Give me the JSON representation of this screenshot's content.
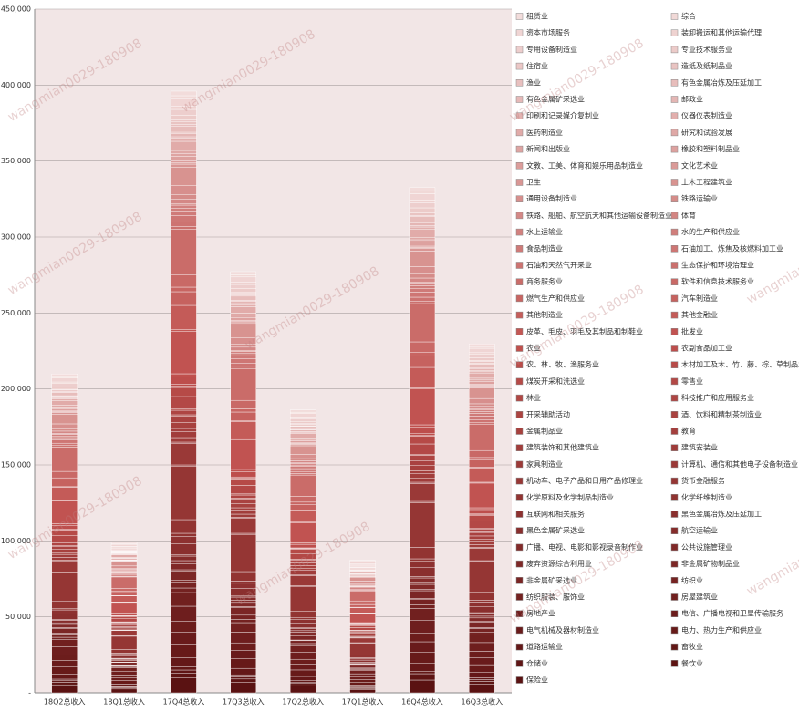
{
  "chart_data": {
    "type": "stacked-bar",
    "categories": [
      "18Q2总收入",
      "18Q1总收入",
      "17Q4总收入",
      "17Q3总收入",
      "17Q2总收入",
      "17Q1总收入",
      "16Q4总收入",
      "16Q3总收入"
    ],
    "ylim": [
      0,
      450000
    ],
    "yticks": [
      {
        "value": 0,
        "label": "-"
      },
      {
        "value": 50000,
        "label": "50,000"
      },
      {
        "value": 100000,
        "label": "100,000"
      },
      {
        "value": 150000,
        "label": "150,000"
      },
      {
        "value": 200000,
        "label": "200,000"
      },
      {
        "value": 250000,
        "label": "250,000"
      },
      {
        "value": 300000,
        "label": "300,000"
      },
      {
        "value": 350000,
        "label": "350,000"
      },
      {
        "value": 400000,
        "label": "400,000"
      },
      {
        "value": 450000,
        "label": "450,000"
      }
    ],
    "grid": true,
    "legend": "right",
    "legend_columns": 2,
    "colors": [
      "#5a1212",
      "#c0504d",
      "#f2dcdb"
    ],
    "plot_background": "#f2e6e6",
    "watermark": "wangmian0029-180908",
    "series": [
      {
        "name": "保险业",
        "values": [
          5300,
          2500,
          10000,
          7000,
          4700,
          2200,
          8400,
          5800
        ]
      },
      {
        "name": "餐饮业",
        "values": [
          1590,
          750,
          3000,
          2100,
          1410,
          660,
          2520,
          1740
        ]
      },
      {
        "name": "仓储业",
        "values": [
          1060,
          500,
          2000,
          1400,
          940,
          440,
          1680,
          1160
        ]
      },
      {
        "name": "畜牧业",
        "values": [
          1060,
          500,
          2000,
          1400,
          940,
          440,
          1680,
          1160
        ]
      },
      {
        "name": "道路运输业",
        "values": [
          3180,
          1500,
          6000,
          4200,
          2820,
          1320,
          5040,
          3480
        ]
      },
      {
        "name": "电力、热力生产和供应业",
        "values": [
          4770,
          2250,
          9000,
          6300,
          4230,
          1980,
          7560,
          5220
        ]
      },
      {
        "name": "电气机械及器材制造业",
        "values": [
          4240,
          2000,
          8000,
          5600,
          3760,
          1760,
          6720,
          4640
        ]
      },
      {
        "name": "电信、广播电视和卫星传输服务",
        "values": [
          3710,
          1750,
          7000,
          4900,
          3290,
          1540,
          5880,
          4060
        ]
      },
      {
        "name": "房地产业",
        "values": [
          5300,
          2500,
          10000,
          7000,
          4700,
          2200,
          8400,
          5800
        ]
      },
      {
        "name": "房屋建筑业",
        "values": [
          4770,
          2250,
          9000,
          6300,
          4230,
          1980,
          7560,
          5220
        ]
      },
      {
        "name": "纺织服装、服饰业",
        "values": [
          1590,
          750,
          3000,
          2100,
          1410,
          660,
          2520,
          1740
        ]
      },
      {
        "name": "纺织业",
        "values": [
          2120,
          1000,
          4000,
          2800,
          1880,
          880,
          3360,
          2320
        ]
      },
      {
        "name": "非金属矿采选业",
        "values": [
          530,
          250,
          1000,
          700,
          470,
          220,
          840,
          580
        ]
      },
      {
        "name": "非金属矿物制品业",
        "values": [
          3180,
          1500,
          6000,
          4200,
          2820,
          1320,
          5040,
          3480
        ]
      },
      {
        "name": "废弃资源综合利用业",
        "values": [
          530,
          250,
          1000,
          700,
          470,
          220,
          840,
          580
        ]
      },
      {
        "name": "公共设施管理业",
        "values": [
          2120,
          1000,
          4000,
          2800,
          1880,
          880,
          3360,
          2320
        ]
      },
      {
        "name": "广播、电视、电影和影视录音制作业",
        "values": [
          1060,
          500,
          2000,
          1400,
          940,
          440,
          1680,
          1160
        ]
      },
      {
        "name": "航空运输业",
        "values": [
          1590,
          750,
          3000,
          2100,
          1410,
          660,
          2520,
          1740
        ]
      },
      {
        "name": "黑色金属矿采选业",
        "values": [
          530,
          250,
          1000,
          700,
          470,
          220,
          840,
          580
        ]
      },
      {
        "name": "黑色金属冶炼及压延加工",
        "values": [
          3710,
          1750,
          7000,
          4900,
          3290,
          1540,
          5880,
          4060
        ]
      },
      {
        "name": "互联网和相关服务",
        "values": [
          2650,
          1250,
          5000,
          3500,
          2350,
          1100,
          4200,
          2900
        ]
      },
      {
        "name": "化学纤维制造业",
        "values": [
          1060,
          500,
          2000,
          1400,
          940,
          440,
          1680,
          1160
        ]
      },
      {
        "name": "化学原料及化学制品制造业",
        "values": [
          4770,
          2250,
          9000,
          6300,
          4230,
          1980,
          7560,
          5220
        ]
      },
      {
        "name": "货币金融服务",
        "values": [
          18550,
          8750,
          35000,
          24500,
          16450,
          7700,
          29400,
          20300
        ]
      },
      {
        "name": "机动车、电子产品和日用产品修理业",
        "values": [
          530,
          250,
          1000,
          700,
          470,
          220,
          840,
          580
        ]
      },
      {
        "name": "计算机、通信和其他电子设备制造业",
        "values": [
          7420,
          3500,
          14000,
          9800,
          6580,
          3080,
          11760,
          8120
        ]
      },
      {
        "name": "家具制造业",
        "values": [
          530,
          250,
          1000,
          700,
          470,
          220,
          840,
          580
        ]
      },
      {
        "name": "建筑安装业",
        "values": [
          1590,
          750,
          3000,
          2100,
          1410,
          660,
          2520,
          1740
        ]
      },
      {
        "name": "建筑装饰和其他建筑业",
        "values": [
          2120,
          1000,
          4000,
          2800,
          1880,
          880,
          3360,
          2320
        ]
      },
      {
        "name": "教育",
        "values": [
          1060,
          500,
          2000,
          1400,
          940,
          440,
          1680,
          1160
        ]
      },
      {
        "name": "金属制品业",
        "values": [
          2120,
          1000,
          4000,
          2800,
          1880,
          880,
          3360,
          2320
        ]
      },
      {
        "name": "酒、饮料和精制茶制造业",
        "values": [
          2120,
          1000,
          4000,
          2800,
          1880,
          880,
          3360,
          2320
        ]
      },
      {
        "name": "开采辅助活动",
        "values": [
          530,
          250,
          1000,
          700,
          470,
          220,
          840,
          580
        ]
      },
      {
        "name": "科技推广和应用服务业",
        "values": [
          1590,
          750,
          3000,
          2100,
          1410,
          660,
          2520,
          1740
        ]
      },
      {
        "name": "林业",
        "values": [
          530,
          250,
          1000,
          700,
          470,
          220,
          840,
          580
        ]
      },
      {
        "name": "零售业",
        "values": [
          4240,
          2000,
          8000,
          5600,
          3760,
          1760,
          6720,
          4640
        ]
      },
      {
        "name": "煤炭开采和洗选业",
        "values": [
          3180,
          1500,
          6000,
          4200,
          2820,
          1320,
          5040,
          3480
        ]
      },
      {
        "name": "木材加工及木、竹、藤、棕、草制品业",
        "values": [
          530,
          250,
          1000,
          700,
          470,
          220,
          840,
          580
        ]
      },
      {
        "name": "农、林、牧、渔服务业",
        "values": [
          530,
          250,
          1000,
          700,
          470,
          220,
          840,
          580
        ]
      },
      {
        "name": "农副食品加工业",
        "values": [
          2650,
          1250,
          5000,
          3500,
          2350,
          1100,
          4200,
          2900
        ]
      },
      {
        "name": "农业",
        "values": [
          1060,
          500,
          2000,
          1400,
          940,
          440,
          1680,
          1160
        ]
      },
      {
        "name": "批发业",
        "values": [
          14840,
          7000,
          28000,
          19600,
          13160,
          6160,
          23520,
          16240
        ]
      },
      {
        "name": "皮革、毛皮、羽毛及其制品和制鞋业",
        "values": [
          530,
          250,
          1000,
          700,
          470,
          220,
          840,
          580
        ]
      },
      {
        "name": "其他金融业",
        "values": [
          8480,
          4000,
          16000,
          11200,
          7520,
          3520,
          13440,
          9280
        ]
      },
      {
        "name": "其他制造业",
        "values": [
          530,
          250,
          1000,
          700,
          470,
          220,
          840,
          580
        ]
      },
      {
        "name": "汽车制造业",
        "values": [
          4240,
          2000,
          8000,
          5600,
          3760,
          1760,
          6720,
          4640
        ]
      },
      {
        "name": "燃气生产和供应业",
        "values": [
          1590,
          750,
          3000,
          2100,
          1410,
          660,
          2520,
          1740
        ]
      },
      {
        "name": "软件和信息技术服务业",
        "values": [
          4240,
          2000,
          8000,
          5600,
          3760,
          1760,
          6720,
          4640
        ]
      },
      {
        "name": "商务服务业",
        "values": [
          15900,
          7500,
          30000,
          21000,
          14100,
          6600,
          25200,
          17400
        ]
      },
      {
        "name": "生态保护和环境治理业",
        "values": [
          1060,
          500,
          2000,
          1400,
          940,
          440,
          1680,
          1160
        ]
      },
      {
        "name": "石油和天然气开采业",
        "values": [
          1590,
          750,
          3000,
          2100,
          1410,
          660,
          2520,
          1740
        ]
      },
      {
        "name": "石油加工、炼焦及核燃料加工业",
        "values": [
          2120,
          1000,
          4000,
          2800,
          1880,
          880,
          3360,
          2320
        ]
      },
      {
        "name": "食品制造业",
        "values": [
          1590,
          750,
          3000,
          2100,
          1410,
          660,
          2520,
          1740
        ]
      },
      {
        "name": "水的生产和供应业",
        "values": [
          1060,
          500,
          2000,
          1400,
          940,
          440,
          1680,
          1160
        ]
      },
      {
        "name": "水上运输业",
        "values": [
          1060,
          500,
          2000,
          1400,
          940,
          440,
          1680,
          1160
        ]
      },
      {
        "name": "体育",
        "values": [
          530,
          250,
          1000,
          700,
          470,
          220,
          840,
          580
        ]
      },
      {
        "name": "铁路、船舶、航空航天和其他运输设备制造业",
        "values": [
          1590,
          750,
          3000,
          2100,
          1410,
          660,
          2520,
          1740
        ]
      },
      {
        "name": "铁路运输业",
        "values": [
          1590,
          750,
          3000,
          2100,
          1410,
          660,
          2520,
          1740
        ]
      },
      {
        "name": "通用设备制造业",
        "values": [
          3180,
          1500,
          6000,
          4200,
          2820,
          1320,
          5040,
          3480
        ]
      },
      {
        "name": "土木工程建筑业",
        "values": [
          6360,
          3000,
          12000,
          8400,
          5640,
          2640,
          10080,
          6960
        ]
      },
      {
        "name": "卫生",
        "values": [
          1060,
          500,
          2000,
          1400,
          940,
          440,
          1680,
          1160
        ]
      },
      {
        "name": "文化艺术业",
        "values": [
          530,
          250,
          1000,
          700,
          470,
          220,
          840,
          580
        ]
      },
      {
        "name": "文教、工美、体育和娱乐用品制造业",
        "values": [
          530,
          250,
          1000,
          700,
          470,
          220,
          840,
          580
        ]
      },
      {
        "name": "橡胶和塑料制品业",
        "values": [
          1590,
          750,
          3000,
          2100,
          1410,
          660,
          2520,
          1740
        ]
      },
      {
        "name": "新闻和出版业",
        "values": [
          1060,
          500,
          2000,
          1400,
          940,
          440,
          1680,
          1160
        ]
      },
      {
        "name": "研究和试验发展",
        "values": [
          1060,
          500,
          2000,
          1400,
          940,
          440,
          1680,
          1160
        ]
      },
      {
        "name": "医药制造业",
        "values": [
          3180,
          1500,
          6000,
          4200,
          2820,
          1320,
          5040,
          3480
        ]
      },
      {
        "name": "仪器仪表制造业",
        "values": [
          1060,
          500,
          2000,
          1400,
          940,
          440,
          1680,
          1160
        ]
      },
      {
        "name": "印刷和记录媒介复制业",
        "values": [
          530,
          250,
          1000,
          700,
          470,
          220,
          840,
          580
        ]
      },
      {
        "name": "邮政业",
        "values": [
          1060,
          500,
          2000,
          1400,
          940,
          440,
          1680,
          1160
        ]
      },
      {
        "name": "有色金属矿采选业",
        "values": [
          530,
          250,
          1000,
          700,
          470,
          220,
          840,
          580
        ]
      },
      {
        "name": "有色金属冶炼及压延加工",
        "values": [
          2120,
          1000,
          4000,
          2800,
          1880,
          880,
          3360,
          2320
        ]
      },
      {
        "name": "渔业",
        "values": [
          530,
          250,
          1000,
          700,
          470,
          220,
          840,
          580
        ]
      },
      {
        "name": "造纸及纸制品业",
        "values": [
          1060,
          500,
          2000,
          1400,
          940,
          440,
          1680,
          1160
        ]
      },
      {
        "name": "住宿业",
        "values": [
          530,
          250,
          1000,
          700,
          470,
          220,
          840,
          580
        ]
      },
      {
        "name": "专业技术服务业",
        "values": [
          1590,
          750,
          3000,
          2100,
          1410,
          660,
          2520,
          1740
        ]
      },
      {
        "name": "专用设备制造业",
        "values": [
          2120,
          1000,
          4000,
          2800,
          1880,
          880,
          3360,
          2320
        ]
      },
      {
        "name": "装卸搬运和其他运输代理",
        "values": [
          1060,
          500,
          2000,
          1400,
          940,
          440,
          1680,
          1160
        ]
      },
      {
        "name": "资本市场服务",
        "values": [
          2650,
          1250,
          5000,
          3500,
          2350,
          1100,
          4200,
          2900
        ]
      },
      {
        "name": "综合",
        "values": [
          1060,
          500,
          2000,
          1400,
          940,
          440,
          1680,
          1160
        ]
      },
      {
        "name": "租赁业",
        "values": [
          1590,
          750,
          3000,
          2100,
          1410,
          660,
          2520,
          1740
        ]
      }
    ]
  }
}
